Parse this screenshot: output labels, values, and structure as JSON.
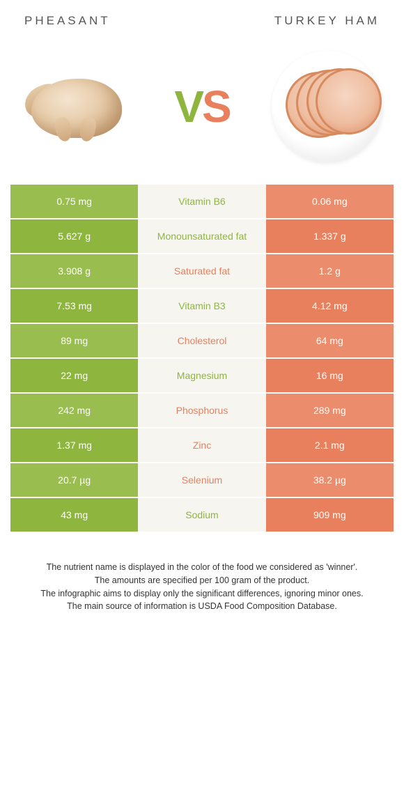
{
  "titles": {
    "left": "Pheasant",
    "right": "Turkey Ham"
  },
  "vs": {
    "v": "V",
    "s": "S"
  },
  "colors": {
    "green": "#8eb63f",
    "orange": "#e8805e",
    "green_alt": "#99bd4e",
    "orange_alt": "#eb8c6c",
    "mid_bg": "#f7f5ef"
  },
  "rows": [
    {
      "left": "0.75 mg",
      "label": "Vitamin B6",
      "winner": "green",
      "right": "0.06 mg"
    },
    {
      "left": "5.627 g",
      "label": "Monounsaturated fat",
      "winner": "green",
      "right": "1.337 g"
    },
    {
      "left": "3.908 g",
      "label": "Saturated fat",
      "winner": "orange",
      "right": "1.2 g"
    },
    {
      "left": "7.53 mg",
      "label": "Vitamin B3",
      "winner": "green",
      "right": "4.12 mg"
    },
    {
      "left": "89 mg",
      "label": "Cholesterol",
      "winner": "orange",
      "right": "64 mg"
    },
    {
      "left": "22 mg",
      "label": "Magnesium",
      "winner": "green",
      "right": "16 mg"
    },
    {
      "left": "242 mg",
      "label": "Phosphorus",
      "winner": "orange",
      "right": "289 mg"
    },
    {
      "left": "1.37 mg",
      "label": "Zinc",
      "winner": "orange",
      "right": "2.1 mg"
    },
    {
      "left": "20.7 µg",
      "label": "Selenium",
      "winner": "orange",
      "right": "38.2 µg"
    },
    {
      "left": "43 mg",
      "label": "Sodium",
      "winner": "green",
      "right": "909 mg"
    }
  ],
  "footer": [
    "The nutrient name is displayed in the color of the food we considered as 'winner'.",
    "The amounts are specified per 100 gram of the product.",
    "The infographic aims to display only the significant differences, ignoring minor ones.",
    "The main source of information is USDA Food Composition Database."
  ]
}
